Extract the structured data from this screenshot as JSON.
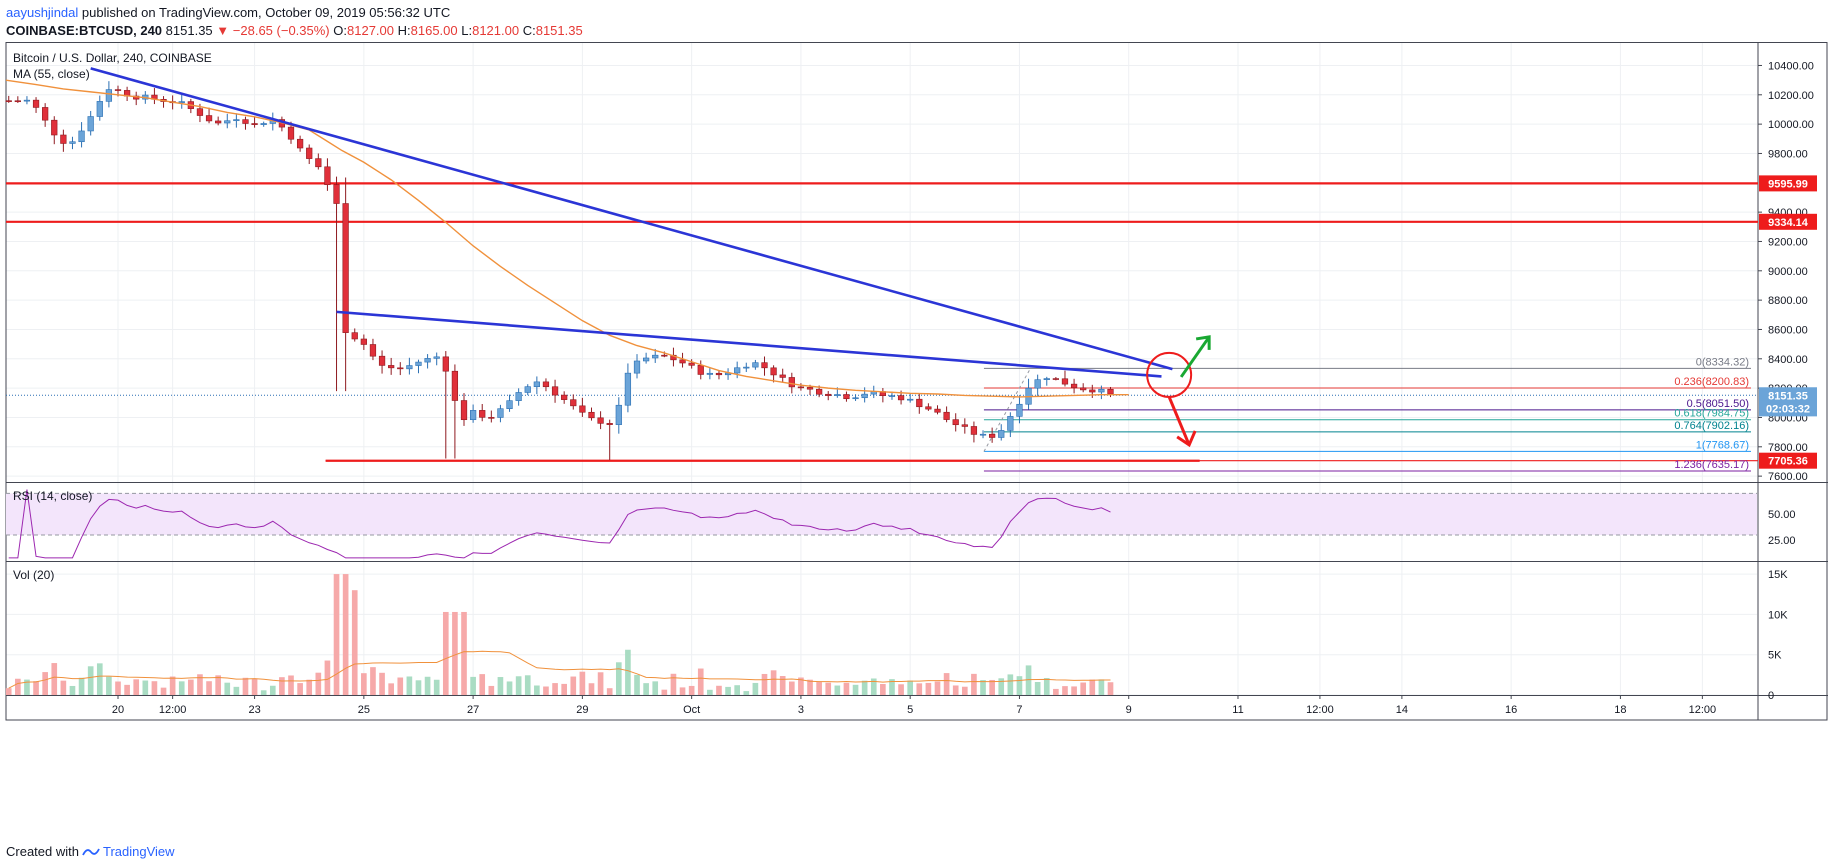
{
  "header": {
    "author": "aayushjindal",
    "published_text": "published on TradingView.com, October 09, 2019 05:56:32 UTC",
    "symbol": "COINBASE:BTCUSD, 240",
    "last": "8151.35",
    "change_arrow": "▼",
    "change": "−28.65 (−0.35%)",
    "ohlc": {
      "o_label": "O:",
      "o": "8127.00",
      "h_label": "H:",
      "h": "8165.00",
      "l_label": "L:",
      "l": "8121.00",
      "c_label": "C:",
      "c": "8151.35"
    }
  },
  "footer": {
    "created_with": "Created with",
    "brand": "TradingView"
  },
  "colors": {
    "up": "#6ba4d8",
    "down": "#e0303a",
    "ma": "#f0913c",
    "trend": "#2b35d6",
    "level": "#ee1c1c",
    "rsi": "#9c27b0",
    "rsi_band": "#f3e5fb",
    "vol_up": "#a9dcc3",
    "vol_down": "#f6a9a9",
    "arrow_up": "#19a832",
    "arrow_down": "#ee1c1c"
  },
  "chart_data": [
    {
      "type": "candlestick",
      "title": "Bitcoin / U.S. Dollar, 240, COINBASE",
      "indicator_label": "MA (55, close)",
      "ylim": [
        7560,
        10560
      ],
      "y_ticks": [
        7600,
        7800,
        8000,
        8200,
        8400,
        8600,
        8800,
        9000,
        9200,
        9400,
        9800,
        10000,
        10200,
        10400
      ],
      "y_tick_labels": [
        "7600.00",
        "7800.00",
        "8000.00",
        "8200.00",
        "8400.00",
        "8600.00",
        "8800.00",
        "9000.00",
        "9200.00",
        "9400.00",
        "9800.00",
        "10000.00",
        "10200.00",
        "10400.00"
      ],
      "x_tick_labels": [
        "20",
        "12:00",
        "23",
        "25",
        "27",
        "29",
        "Oct",
        "3",
        "5",
        "7",
        "9",
        "11",
        "12:00",
        "14",
        "16",
        "18",
        "12:00"
      ],
      "x_tick_pos": [
        0.5,
        1.5,
        3.0,
        5.0,
        7.0,
        9.0,
        11.0,
        13.0,
        15.0,
        17.0,
        19.0,
        21.0,
        22.5,
        24.0,
        26.0,
        28.0,
        29.5
      ],
      "x_domain": [
        -1.55,
        30.5
      ],
      "price_levels": [
        9595.99,
        9334.14,
        7705.36
      ],
      "price_level_labels": [
        "9595.99",
        "9334.14",
        "7705.36"
      ],
      "current_price": "8151.35",
      "countdown": "02:03:32",
      "fib_levels": [
        {
          "label": "0(8334.32)",
          "value": 8334.32,
          "color": "#787b86"
        },
        {
          "label": "0.236(8200.83)",
          "value": 8200.83,
          "color": "#e53935"
        },
        {
          "label": "0.5(8051.50)",
          "value": 8051.5,
          "color": "#4a148c"
        },
        {
          "label": "0.618(7984.75)",
          "value": 7984.75,
          "color": "#26a69a"
        },
        {
          "label": "0.764(7902.16)",
          "value": 7902.16,
          "color": "#00838f"
        },
        {
          "label": "1(7768.67)",
          "value": 7768.67,
          "color": "#2196f3"
        },
        {
          "label": "1.236(7635.17)",
          "value": 7635.17,
          "color": "#7b1fa2"
        }
      ],
      "ma_values": [
        [
          -1.55,
          10300
        ],
        [
          -1.0,
          10270
        ],
        [
          -0.5,
          10240
        ],
        [
          0,
          10220
        ],
        [
          0.5,
          10200
        ],
        [
          1.0,
          10180
        ],
        [
          1.5,
          10150
        ],
        [
          2.0,
          10120
        ],
        [
          2.5,
          10080
        ],
        [
          3.0,
          10050
        ],
        [
          3.5,
          10010
        ],
        [
          4.0,
          9960
        ],
        [
          4.3,
          9890
        ],
        [
          4.6,
          9820
        ],
        [
          5.0,
          9740
        ],
        [
          5.5,
          9620
        ],
        [
          6.0,
          9480
        ],
        [
          6.5,
          9330
        ],
        [
          7.0,
          9170
        ],
        [
          7.5,
          9030
        ],
        [
          8.0,
          8900
        ],
        [
          8.5,
          8780
        ],
        [
          9.0,
          8660
        ],
        [
          9.5,
          8560
        ],
        [
          10.0,
          8490
        ],
        [
          10.5,
          8440
        ],
        [
          11.0,
          8380
        ],
        [
          11.5,
          8320
        ],
        [
          12.0,
          8280
        ],
        [
          12.5,
          8250
        ],
        [
          13.0,
          8220
        ],
        [
          13.5,
          8200
        ],
        [
          14.0,
          8185
        ],
        [
          14.5,
          8175
        ],
        [
          15.0,
          8165
        ],
        [
          15.5,
          8160
        ],
        [
          16.0,
          8150
        ],
        [
          16.5,
          8145
        ],
        [
          17.0,
          8140
        ],
        [
          17.5,
          8145
        ],
        [
          18.0,
          8150
        ],
        [
          18.5,
          8155
        ],
        [
          19.0,
          8155
        ]
      ],
      "trendlines": [
        {
          "x1": 0.0,
          "y1": 10380,
          "x2": 19.8,
          "y2": 8330
        },
        {
          "x1": 4.5,
          "y1": 8720,
          "x2": 19.6,
          "y2": 8280
        }
      ],
      "support_segment": {
        "x1": 4.3,
        "x2": 19.2,
        "y": 7705
      }
    },
    {
      "type": "line",
      "title": "RSI (14, close)",
      "ylim": [
        5,
        80
      ],
      "bands": [
        30,
        70
      ],
      "y_tick_labels": [
        "50.00",
        "25.00"
      ],
      "y_ticks": [
        50,
        25
      ]
    },
    {
      "type": "bar",
      "title": "Vol (20)",
      "ylim": [
        0,
        16000
      ],
      "y_ticks": [
        0,
        5000,
        10000,
        15000
      ],
      "y_tick_labels": [
        "0",
        "5K",
        "10K",
        "15K"
      ]
    }
  ]
}
